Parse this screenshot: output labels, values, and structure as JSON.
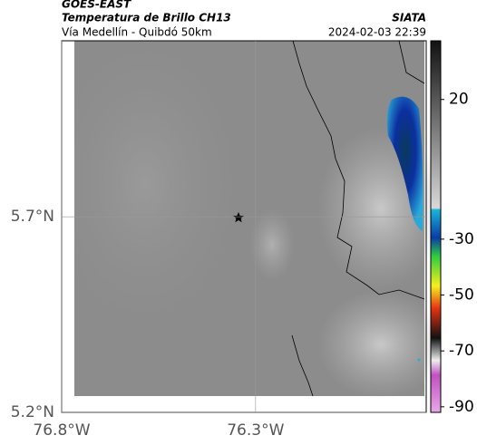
{
  "chart_data": {
    "type": "map",
    "title": "GOES-EAST",
    "subtitle": "Temperatura de Brillo CH13",
    "region": "Vía Medellín - Quibdó 50km",
    "source": "SIATA",
    "timestamp": "2024-02-03 22:39",
    "xlim": [
      -76.8,
      -75.86
    ],
    "ylim": [
      5.2,
      6.15
    ],
    "xticks": [
      {
        "value": -76.8,
        "label": "76.8°W"
      },
      {
        "value": -76.3,
        "label": "76.3°W"
      }
    ],
    "yticks": [
      {
        "value": 5.7,
        "label": "5.7°N"
      },
      {
        "value": 5.2,
        "label": "5.2°N"
      }
    ],
    "grid": true,
    "colorbar": {
      "lim": [
        -92,
        41
      ],
      "ticks": [
        20,
        -30,
        -50,
        -70,
        -90
      ]
    }
  }
}
